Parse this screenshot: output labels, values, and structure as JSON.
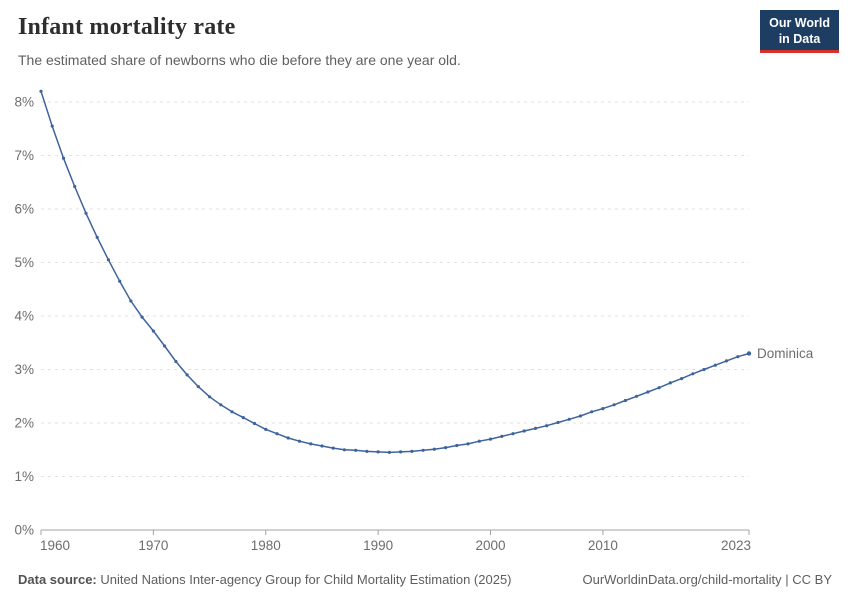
{
  "header": {
    "title": "Infant mortality rate",
    "subtitle": "The estimated share of newborns who die before they are one year old."
  },
  "logo": {
    "line1": "Our World",
    "line2": "in Data",
    "bg_color": "#1d3d63",
    "accent_color": "#d7312a"
  },
  "footer": {
    "source_label": "Data source:",
    "source_text": "United Nations Inter-agency Group for Child Mortality Estimation (2025)",
    "citation": "OurWorldinData.org/child-mortality | CC BY"
  },
  "chart_data": {
    "type": "line",
    "title": "Infant mortality rate",
    "subtitle": "The estimated share of newborns who die before they are one year old.",
    "unit": "%",
    "xlabel": "",
    "ylabel": "",
    "xlim": [
      1960,
      2023
    ],
    "ylim": [
      0,
      8.3
    ],
    "grid": true,
    "x_ticks": [
      "1960",
      "1970",
      "1980",
      "1990",
      "2000",
      "2010",
      "2023"
    ],
    "y_ticks": [
      "0%",
      "1%",
      "2%",
      "3%",
      "4%",
      "5%",
      "6%",
      "7%",
      "8%"
    ],
    "x": [
      1960,
      1961,
      1962,
      1963,
      1964,
      1965,
      1966,
      1967,
      1968,
      1969,
      1970,
      1971,
      1972,
      1973,
      1974,
      1975,
      1976,
      1977,
      1978,
      1979,
      1980,
      1981,
      1982,
      1983,
      1984,
      1985,
      1986,
      1987,
      1988,
      1989,
      1990,
      1991,
      1992,
      1993,
      1994,
      1995,
      1996,
      1997,
      1998,
      1999,
      2000,
      2001,
      2002,
      2003,
      2004,
      2005,
      2006,
      2007,
      2008,
      2009,
      2010,
      2011,
      2012,
      2013,
      2014,
      2015,
      2016,
      2017,
      2018,
      2019,
      2020,
      2021,
      2022,
      2023
    ],
    "series": [
      {
        "name": "Dominica",
        "color": "#3e649d",
        "values": [
          8.2,
          7.55,
          6.95,
          6.42,
          5.92,
          5.47,
          5.05,
          4.65,
          4.28,
          3.98,
          3.72,
          3.44,
          3.15,
          2.9,
          2.68,
          2.49,
          2.34,
          2.21,
          2.1,
          1.99,
          1.88,
          1.8,
          1.72,
          1.66,
          1.61,
          1.57,
          1.53,
          1.5,
          1.49,
          1.47,
          1.46,
          1.45,
          1.46,
          1.47,
          1.49,
          1.51,
          1.54,
          1.58,
          1.61,
          1.66,
          1.7,
          1.75,
          1.8,
          1.85,
          1.9,
          1.95,
          2.01,
          2.07,
          2.13,
          2.21,
          2.27,
          2.34,
          2.42,
          2.5,
          2.58,
          2.66,
          2.75,
          2.83,
          2.92,
          3.0,
          3.08,
          3.16,
          3.24,
          3.3
        ]
      }
    ],
    "end_label": "Dominica",
    "legend_position": "end-of-line",
    "gridline_color": "#e2e2e2",
    "axis_color": "#a3a3a3",
    "tick_label_color": "#6d6d6d"
  }
}
